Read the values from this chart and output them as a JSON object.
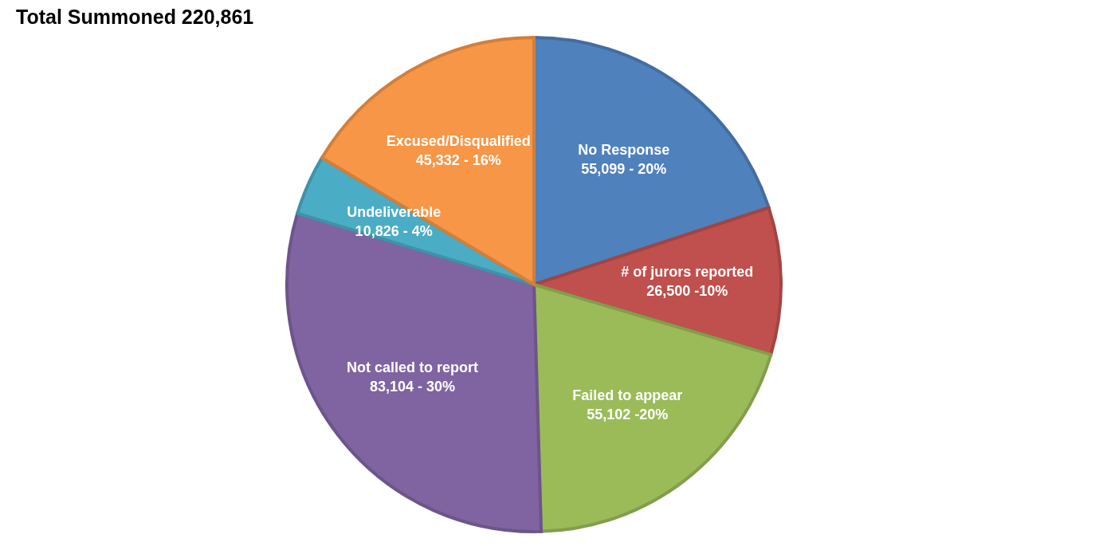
{
  "chart_data": {
    "type": "pie",
    "title": "Total Summoned 220,861",
    "categories": [
      "No Response",
      "# of jurors reported",
      "Failed to appear",
      "Not called to report",
      "Undeliverable",
      "Excused/Disqualified"
    ],
    "values": [
      55099,
      26500,
      55102,
      83104,
      10826,
      45332
    ],
    "value_labels": [
      "55,099 - 20%",
      "26,500 -10%",
      "55,102 -20%",
      "83,104 - 30%",
      "10,826 - 4%",
      "45,332 - 16%"
    ],
    "colors": [
      "#4f81bd",
      "#c0504d",
      "#9bbb59",
      "#8064a2",
      "#4bacc6",
      "#f79646"
    ],
    "legend": false
  }
}
